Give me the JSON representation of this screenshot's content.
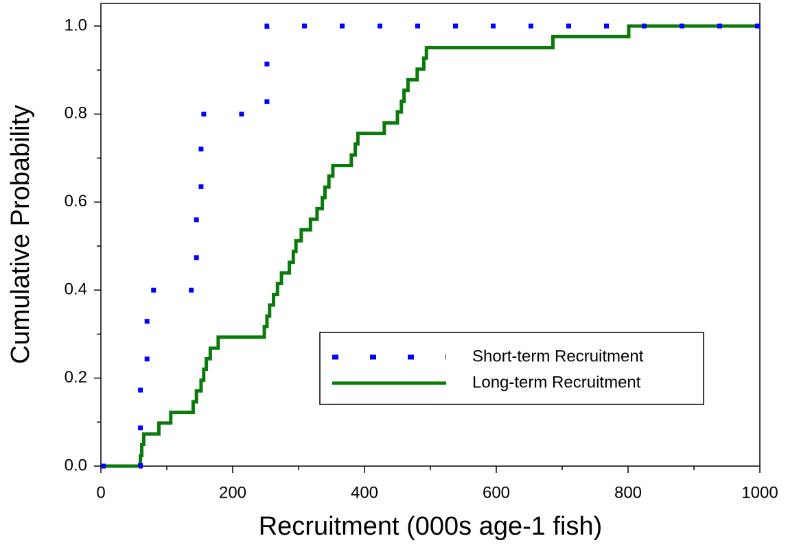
{
  "chart_data": {
    "type": "step",
    "x_label": "Recruitment (000s age-1 fish)",
    "y_label": "Cumulative Probability",
    "xlim": [
      0,
      1000
    ],
    "ylim": [
      0,
      1
    ],
    "xticks": [
      0,
      200,
      400,
      600,
      800,
      1000
    ],
    "xminorticks": [
      100,
      300,
      500,
      700,
      900
    ],
    "yticks": [
      {
        "value": 0,
        "label": "0.0"
      },
      0.2,
      0.4,
      0.6,
      0.8,
      {
        "value": 1,
        "label": "1.0"
      }
    ],
    "yminorticks": [
      0.1,
      0.3,
      0.5,
      0.7,
      0.9
    ],
    "grid": false,
    "legend": "center right",
    "series": [
      {
        "name": "Short-term Recruitment",
        "color": "#0000ff",
        "style": "dotted",
        "x": [
          0,
          60,
          70,
          145,
          152,
          252,
          1000
        ],
        "values": [
          0,
          0.2,
          0.4,
          0.6,
          0.8,
          1.0,
          1.0
        ]
      },
      {
        "name": "Long-term Recruitment",
        "color": "#0a7a0a",
        "style": "solid",
        "x": [
          0,
          60,
          62,
          65,
          88,
          106,
          140,
          145,
          152,
          156,
          160,
          166,
          178,
          248,
          252,
          256,
          262,
          268,
          274,
          286,
          292,
          296,
          304,
          318,
          328,
          336,
          340,
          346,
          352,
          380,
          386,
          390,
          430,
          450,
          456,
          460,
          466,
          480,
          490,
          494,
          686,
          801,
          1000
        ],
        "values": [
          0,
          0.024,
          0.049,
          0.073,
          0.098,
          0.122,
          0.146,
          0.171,
          0.195,
          0.22,
          0.244,
          0.268,
          0.293,
          0.317,
          0.341,
          0.366,
          0.39,
          0.415,
          0.439,
          0.463,
          0.488,
          0.512,
          0.537,
          0.561,
          0.585,
          0.61,
          0.634,
          0.659,
          0.683,
          0.707,
          0.732,
          0.756,
          0.78,
          0.805,
          0.829,
          0.854,
          0.878,
          0.902,
          0.927,
          0.951,
          0.976,
          1.0,
          1.0
        ]
      }
    ]
  }
}
